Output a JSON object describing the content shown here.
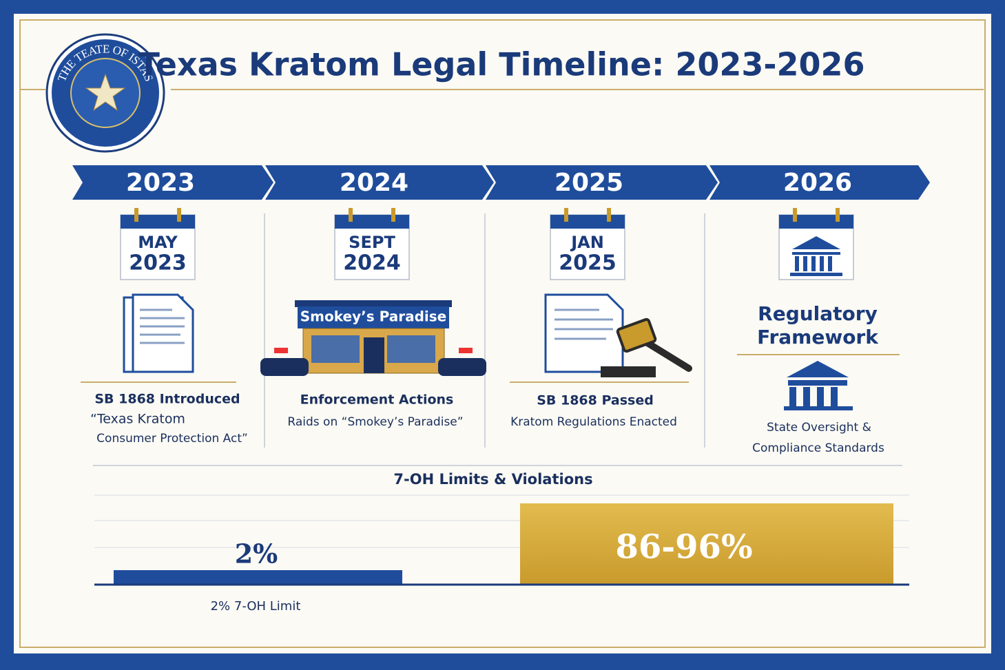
{
  "header": {
    "title": "Texas Kratom Legal Timeline: 2023-2026",
    "seal_text": "THE TEATE OF ISTAS"
  },
  "timeline": [
    {
      "year": "2023",
      "month": "MAY",
      "date_year": "2023",
      "heading": "SB 1868 Introduced",
      "lines": [
        "“Texas Kratom",
        "Consumer Protection Act”"
      ]
    },
    {
      "year": "2024",
      "month": "SEPT",
      "date_year": "2024",
      "sign": "Smokey’s Paradise",
      "heading": "Enforcement Actions",
      "lines": [
        "Raids on “Smokey’s Paradise”"
      ]
    },
    {
      "year": "2025",
      "month": "JAN",
      "date_year": "2025",
      "heading": "SB 1868 Passed",
      "lines": [
        "Kratom Regulations Enacted"
      ]
    },
    {
      "year": "2026",
      "heading": "Regulatory",
      "heading2": "Framework",
      "lines": [
        "State Oversight &",
        "Compliance Standards"
      ]
    }
  ],
  "limits": {
    "title": "7-OH Limits & Violations",
    "left_label": "2%",
    "right_label": "86-96%",
    "caption": "2% 7-OH Limit"
  }
}
